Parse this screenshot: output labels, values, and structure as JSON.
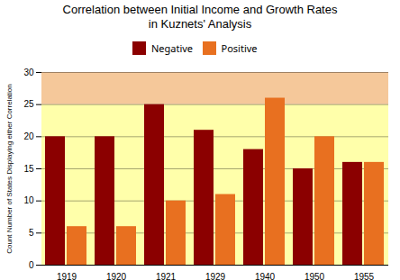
{
  "chart_data": {
    "type": "bar",
    "title": "Correlation between Initial Income and Growth Rates",
    "subtitle": "in Kuznets' Analysis",
    "ylabel": "Count Number of States Displaying either Correlation",
    "categories": [
      "1919",
      "1920",
      "1921",
      "1929",
      "1940",
      "1950",
      "1955"
    ],
    "series": [
      {
        "name": "Negative",
        "color": "#8B0000",
        "values": [
          20,
          20,
          25,
          21,
          18,
          15,
          16
        ]
      },
      {
        "name": "Positive",
        "color": "#E87020",
        "values": [
          6,
          6,
          10,
          11,
          26,
          20,
          16
        ]
      }
    ],
    "bands": [
      {
        "from": 0,
        "to": 25,
        "color": "#FFFFAA"
      },
      {
        "from": 25,
        "to": 30,
        "color": "#F5C89A"
      }
    ],
    "ylim": [
      0,
      30
    ],
    "yticks": [
      0,
      5,
      10,
      15,
      20,
      25,
      30
    ],
    "grid": true,
    "legend": "top"
  }
}
